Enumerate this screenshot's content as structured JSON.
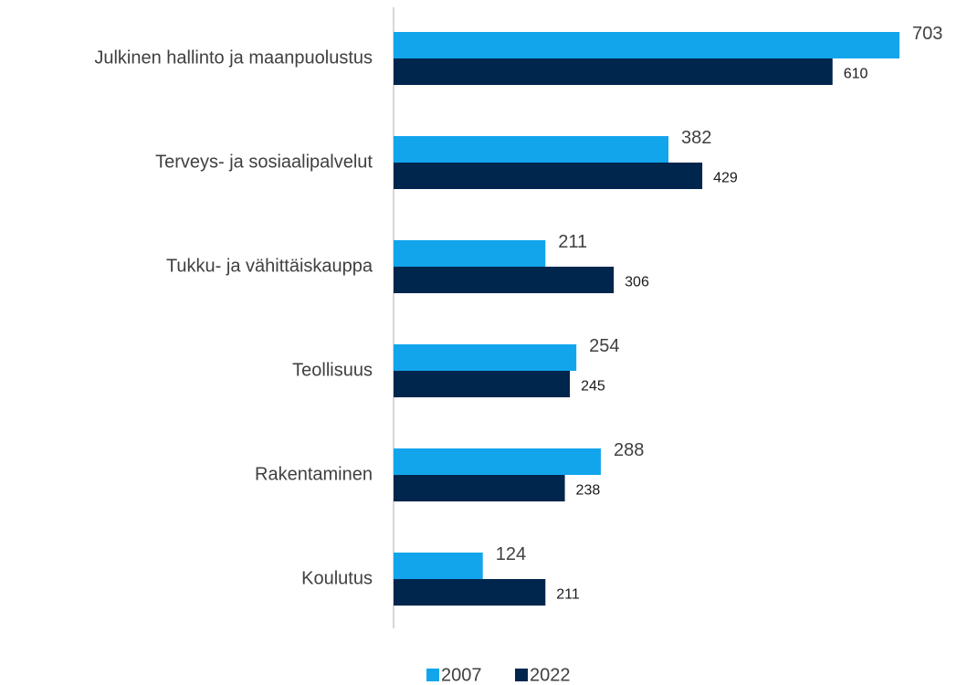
{
  "chart_data": {
    "type": "bar",
    "orientation": "horizontal",
    "categories": [
      "Julkinen hallinto ja maanpuolustus",
      "Terveys- ja sosiaalipalvelut",
      "Tukku- ja vähittäiskauppa",
      "Teollisuus",
      "Rakentaminen",
      "Koulutus"
    ],
    "series": [
      {
        "name": "2007",
        "color": "#12a5ec",
        "values": [
          703,
          382,
          211,
          254,
          288,
          124
        ]
      },
      {
        "name": "2022",
        "color": "#00264d",
        "values": [
          610,
          429,
          306,
          245,
          238,
          211
        ]
      }
    ],
    "legend": "bottom"
  }
}
